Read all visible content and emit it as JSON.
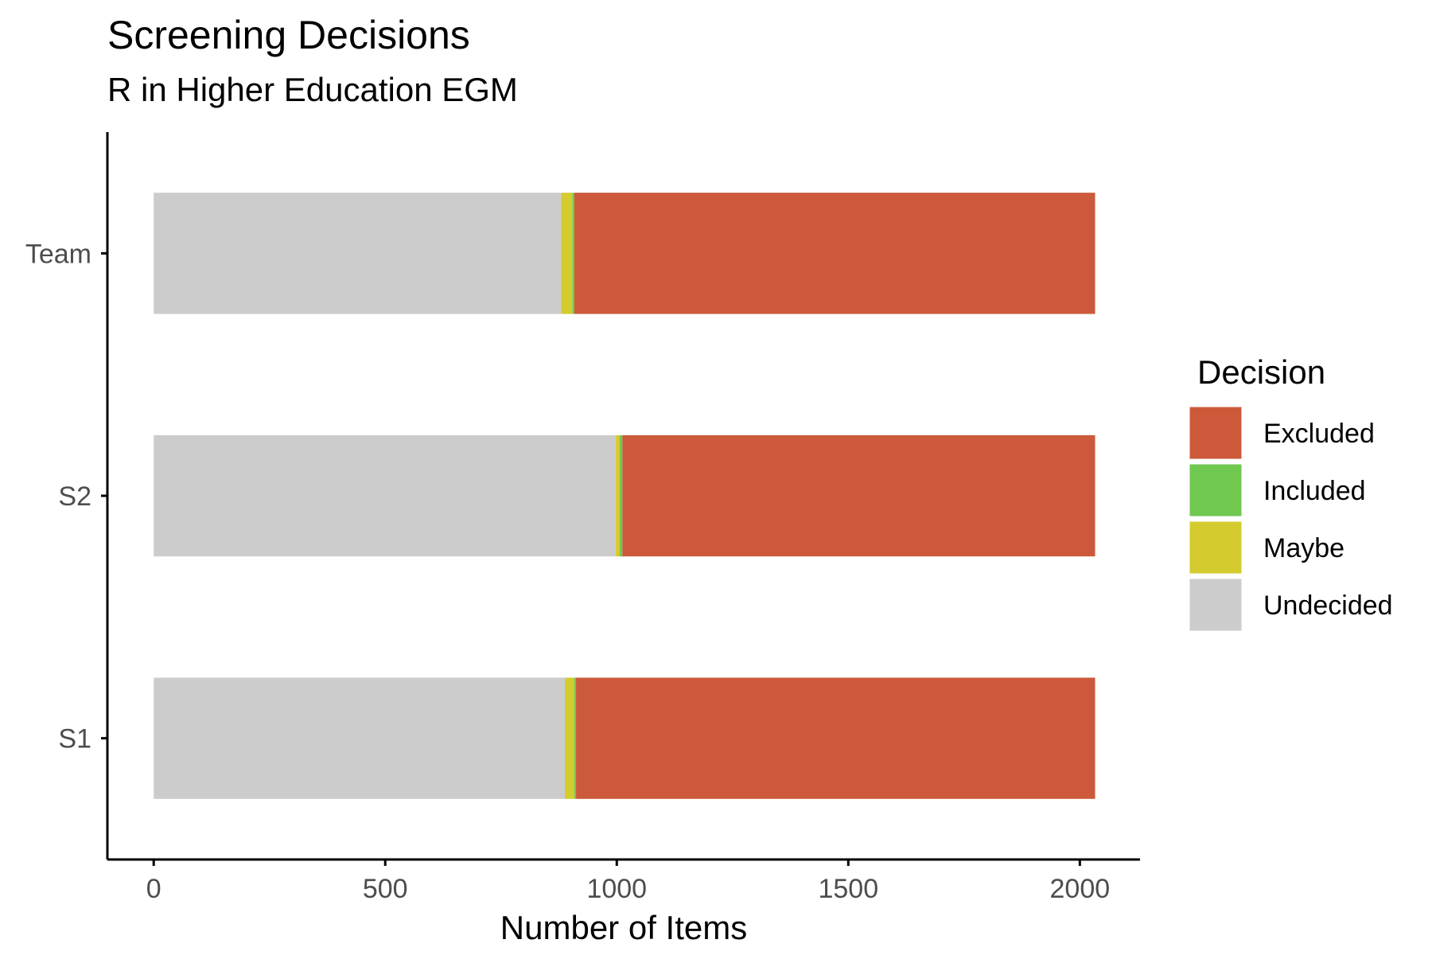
{
  "chart_data": {
    "type": "bar",
    "orientation": "horizontal",
    "stacked": true,
    "title": "Screening Decisions",
    "subtitle": "R in Higher Education EGM",
    "xlabel": "Number of Items",
    "ylabel": "",
    "xlim": [
      -100,
      2130
    ],
    "x_ticks": [
      0,
      500,
      1000,
      1500,
      2000
    ],
    "x_tick_labels": [
      "0",
      "500",
      "1000",
      "1500",
      "2000"
    ],
    "categories": [
      "Team",
      "S2",
      "S1"
    ],
    "series": [
      {
        "name": "Undecided",
        "color": "#cccccc",
        "values": [
          880,
          998,
          888
        ]
      },
      {
        "name": "Maybe",
        "color": "#d4cb2f",
        "values": [
          24,
          8,
          20
        ]
      },
      {
        "name": "Included",
        "color": "#70c850",
        "values": [
          4,
          6,
          4
        ]
      },
      {
        "name": "Excluded",
        "color": "#cc5a3a",
        "values": [
          1125,
          1021,
          1121
        ]
      }
    ],
    "legend": {
      "title": "Decision",
      "position": "right",
      "items": [
        {
          "label": "Excluded",
          "color": "#cc5a3a"
        },
        {
          "label": "Included",
          "color": "#70c850"
        },
        {
          "label": "Maybe",
          "color": "#d4cb2f"
        },
        {
          "label": "Undecided",
          "color": "#cccccc"
        }
      ]
    },
    "grid": false
  }
}
